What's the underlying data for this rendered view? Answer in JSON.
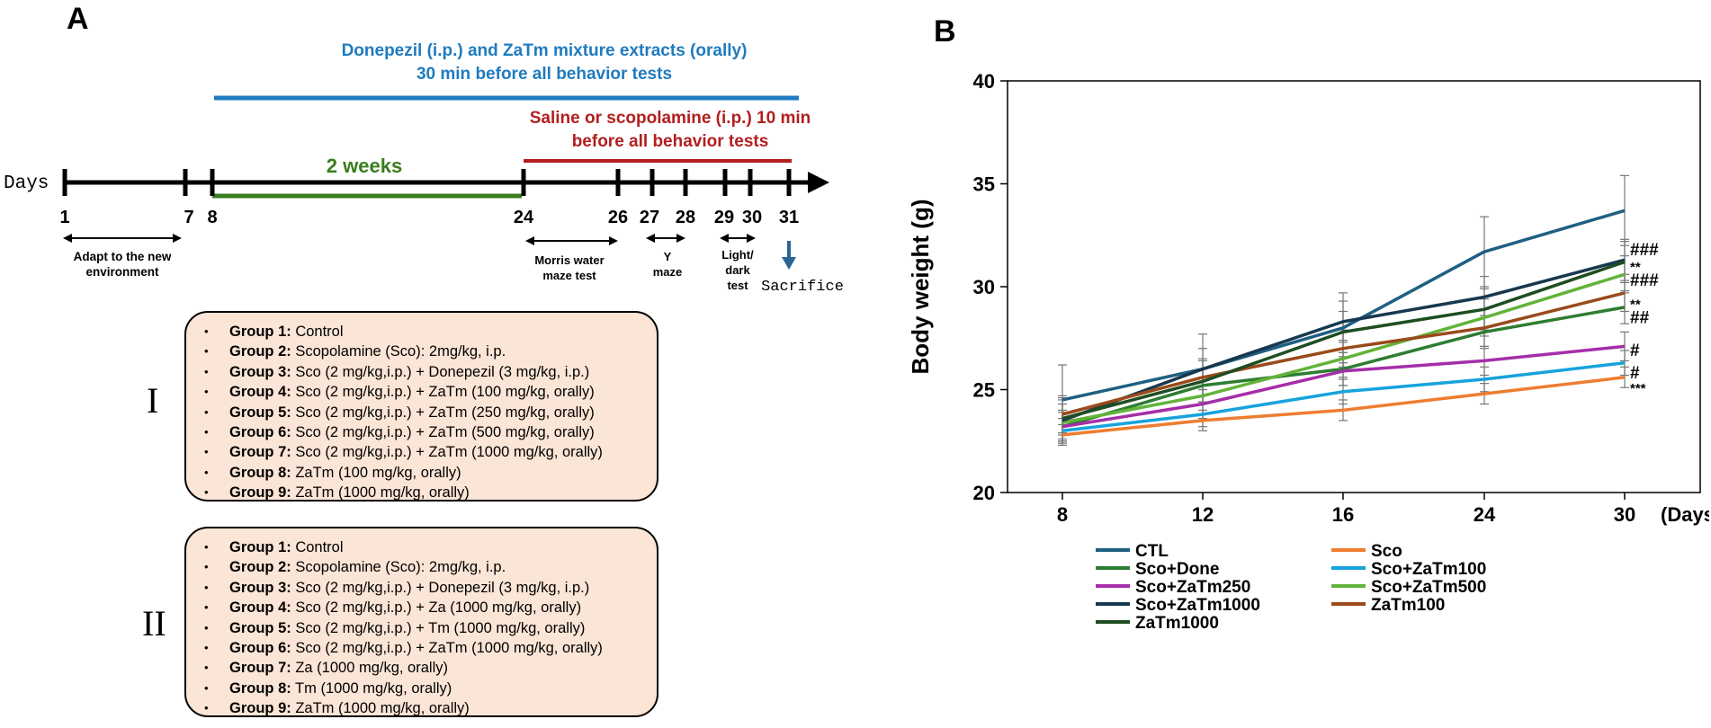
{
  "panel_a": {
    "label": "A",
    "treatment_line1": "Donepezil (i.p.) and ZaTm mixture extracts (orally)",
    "treatment_line2": "30 min before all behavior tests",
    "saline_line1": "Saline or scopolamine (i.p.) 10 min",
    "saline_line2": "before all behavior tests",
    "two_weeks": "2 weeks",
    "days_label": "Days",
    "day_ticks": [
      "1",
      "7",
      "8",
      "24",
      "26",
      "27",
      "28",
      "29",
      "30",
      "31"
    ],
    "adapt_line1": "Adapt to the new",
    "adapt_line2": "environment",
    "morris_line1": "Morris water",
    "morris_line2": "maze test",
    "y_line1": "Y",
    "y_line2": "maze",
    "light_line1": "Light/",
    "light_line2": "dark",
    "light_line3": "test",
    "sacrifice": "Sacrifice",
    "colors": {
      "blue": "#1f7bbf",
      "red": "#b41e1e",
      "green": "#3a7d1f",
      "box": "#fbe5d6"
    },
    "experiment_I": {
      "roman": "I",
      "groups": [
        {
          "name": "Group 1:",
          "desc": "Control"
        },
        {
          "name": "Group 2:",
          "desc": "Scopolamine (Sco): 2mg/kg, i.p."
        },
        {
          "name": "Group 3:",
          "desc": "Sco (2 mg/kg,i.p.) + Donepezil (3 mg/kg, i.p.)"
        },
        {
          "name": "Group 4:",
          "desc": "Sco (2 mg/kg,i.p.) + ZaTm (100 mg/kg, orally)"
        },
        {
          "name": "Group 5:",
          "desc": "Sco (2 mg/kg,i.p.) + ZaTm (250 mg/kg, orally)"
        },
        {
          "name": "Group 6:",
          "desc": "Sco (2 mg/kg,i.p.) + ZaTm (500 mg/kg, orally)"
        },
        {
          "name": "Group 7:",
          "desc": "Sco (2 mg/kg,i.p.) + ZaTm (1000 mg/kg, orally)"
        },
        {
          "name": "Group 8:",
          "desc": "ZaTm (100 mg/kg, orally)"
        },
        {
          "name": "Group 9:",
          "desc": "ZaTm (1000 mg/kg, orally)"
        }
      ]
    },
    "experiment_II": {
      "roman": "II",
      "groups": [
        {
          "name": "Group 1:",
          "desc": "Control"
        },
        {
          "name": "Group 2:",
          "desc": "Scopolamine (Sco): 2mg/kg, i.p."
        },
        {
          "name": "Group 3:",
          "desc": "Sco (2 mg/kg,i.p.) + Donepezil (3 mg/kg, i.p.)"
        },
        {
          "name": "Group 4:",
          "desc": "Sco (2 mg/kg,i.p.) + Za (1000 mg/kg, orally)"
        },
        {
          "name": "Group 5:",
          "desc": "Sco (2 mg/kg,i.p.) + Tm (1000 mg/kg, orally)"
        },
        {
          "name": "Group 6:",
          "desc": "Sco (2 mg/kg,i.p.) + ZaTm (1000 mg/kg, orally)"
        },
        {
          "name": "Group 7:",
          "desc": "Za (1000 mg/kg, orally)"
        },
        {
          "name": "Group 8:",
          "desc": "Tm (1000 mg/kg, orally)"
        },
        {
          "name": "Group 9:",
          "desc": "ZaTm (1000 mg/kg, orally)"
        }
      ]
    }
  },
  "chart_data": {
    "type": "line",
    "panel_label": "B",
    "title": "",
    "xlabel": "",
    "x_unit": "(Days)",
    "ylabel": "Body weight (g)",
    "categories": [
      "8",
      "12",
      "16",
      "24",
      "30"
    ],
    "ylim": [
      20,
      40
    ],
    "yticks": [
      20,
      25,
      30,
      35,
      40
    ],
    "grid": false,
    "legend_position": "bottom",
    "series": [
      {
        "name": "CTL",
        "color": "#1f5f82",
        "values": [
          24.5,
          26.0,
          28.0,
          31.7,
          33.7
        ],
        "errors": [
          1.7,
          1.7,
          1.7,
          1.7,
          1.7
        ]
      },
      {
        "name": "Sco",
        "color": "#ed7d31",
        "values": [
          22.8,
          23.5,
          24.0,
          24.8,
          25.6
        ],
        "errors": [
          0.5,
          0.5,
          0.5,
          0.5,
          0.5
        ]
      },
      {
        "name": "Sco+Done",
        "color": "#2e7d32",
        "values": [
          23.2,
          25.2,
          26.0,
          27.8,
          29.0
        ],
        "errors": [
          0.8,
          0.8,
          0.8,
          0.8,
          0.8
        ]
      },
      {
        "name": "Sco+ZaTm100",
        "color": "#16a3dc",
        "values": [
          23.0,
          23.8,
          24.9,
          25.5,
          26.3
        ],
        "errors": [
          0.6,
          0.6,
          0.6,
          0.6,
          0.6
        ]
      },
      {
        "name": "Sco+ZaTm250",
        "color": "#a52ea8",
        "values": [
          23.2,
          24.3,
          25.9,
          26.4,
          27.1
        ],
        "errors": [
          0.7,
          0.7,
          0.7,
          0.7,
          0.7
        ]
      },
      {
        "name": "Sco+ZaTm500",
        "color": "#62b33a",
        "values": [
          23.4,
          24.7,
          26.5,
          28.5,
          30.6
        ],
        "errors": [
          0.9,
          0.9,
          0.9,
          0.9,
          0.9
        ]
      },
      {
        "name": "Sco+ZaTm1000",
        "color": "#17384f",
        "values": [
          23.5,
          26.0,
          28.3,
          29.5,
          31.3
        ],
        "errors": [
          1.0,
          1.0,
          1.0,
          1.0,
          1.0
        ]
      },
      {
        "name": "ZaTm100",
        "color": "#9a4a1a",
        "values": [
          23.8,
          25.6,
          27.0,
          28.0,
          29.7
        ],
        "errors": [
          0.9,
          0.9,
          0.9,
          0.9,
          0.9
        ]
      },
      {
        "name": "ZaTm1000",
        "color": "#1e4d22",
        "values": [
          23.6,
          25.4,
          27.8,
          28.9,
          31.2
        ],
        "errors": [
          1.0,
          1.0,
          1.0,
          1.0,
          1.0
        ]
      }
    ],
    "annotations": [
      {
        "text": "###",
        "y": 31.8
      },
      {
        "text": "**",
        "y": 31.0
      },
      {
        "text": "###",
        "y": 30.3
      },
      {
        "text": "**",
        "y": 29.2
      },
      {
        "text": "##",
        "y": 28.5
      },
      {
        "text": "#",
        "y": 26.9
      },
      {
        "text": "#",
        "y": 25.8
      },
      {
        "text": "***",
        "y": 25.1
      }
    ]
  }
}
